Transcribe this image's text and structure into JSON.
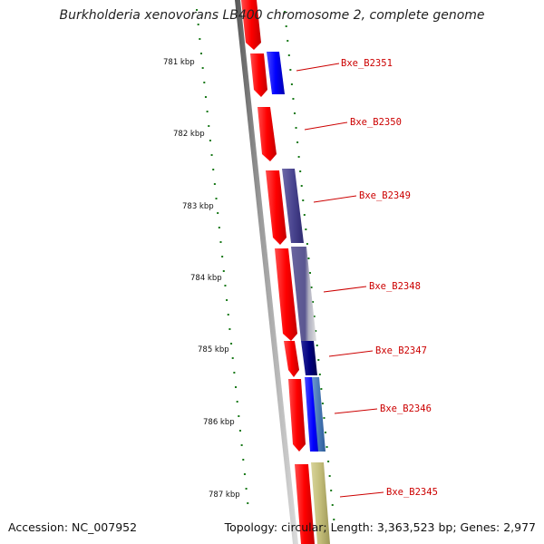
{
  "title": "Burkholderia xenovorans LB400 chromosome 2, complete genome",
  "accession_text": "Accession: NC_007952",
  "summary_text": "Topology: circular; Length: 3,363,523 bp; Genes: 2,977",
  "colors": {
    "backbone": "#888888",
    "tick": "#1a7a1a",
    "label": "#cc0000",
    "gene_forward": "#ff0000"
  },
  "scale_labels": [
    "781 kbp",
    "782 kbp",
    "783 kbp",
    "784 kbp",
    "785 kbp",
    "786 kbp",
    "787 kbp"
  ],
  "gene_labels": [
    "Bxe_B2351",
    "Bxe_B2350",
    "Bxe_B2349",
    "Bxe_B2348",
    "Bxe_B2347",
    "Bxe_B2346",
    "Bxe_B2345"
  ]
}
